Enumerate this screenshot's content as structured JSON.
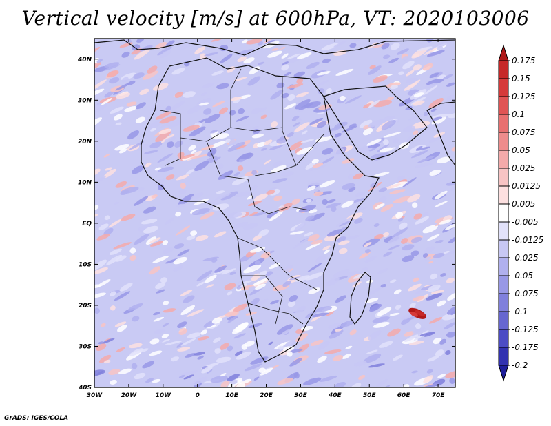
{
  "title": "Vertical velocity [m/s] at 600hPa, VT: 2020103006",
  "footer": "GrADS: IGES/COLA",
  "chart_data": {
    "type": "heatmap",
    "variable": "Vertical velocity",
    "units": "m/s",
    "level": "600hPa",
    "valid_time": "2020103006",
    "x_axis": {
      "range": [
        -30,
        75
      ],
      "ticks": [
        "30W",
        "20W",
        "10W",
        "0",
        "10E",
        "20E",
        "30E",
        "40E",
        "50E",
        "60E",
        "70E"
      ],
      "tick_values": [
        -30,
        -20,
        -10,
        0,
        10,
        20,
        30,
        40,
        50,
        60,
        70
      ]
    },
    "y_axis": {
      "range": [
        -40,
        45
      ],
      "ticks": [
        "40S",
        "30S",
        "20S",
        "10S",
        "EQ",
        "10N",
        "20N",
        "30N",
        "40N"
      ],
      "tick_values": [
        -40,
        -30,
        -20,
        -10,
        0,
        10,
        20,
        30,
        40
      ]
    },
    "colorbar": {
      "levels": [
        "0.175",
        "0.15",
        "0.125",
        "0.1",
        "0.075",
        "0.05",
        "0.025",
        "0.0125",
        "0.005",
        "-0.005",
        "-0.0125",
        "-0.025",
        "-0.05",
        "-0.075",
        "-0.1",
        "-0.125",
        "-0.175",
        "-0.2"
      ],
      "colors": [
        "#b01818",
        "#c62828",
        "#d63a3a",
        "#e05454",
        "#e87070",
        "#ee8c8c",
        "#f4aaaa",
        "#f8c4c4",
        "#fde0e0",
        "#ffffff",
        "#e2e2fa",
        "#c8c8f4",
        "#b0b0ee",
        "#9898e6",
        "#8080dc",
        "#6666d0",
        "#4c4cc4",
        "#3232b0",
        "#1e1e9a"
      ]
    },
    "features": {
      "strong_ascent_cyclone": {
        "lon": 64,
        "lat": -22,
        "sign": "positive"
      },
      "broad_descent_south_atlantic": {
        "lon_range": [
          -30,
          25
        ],
        "lat_range": [
          -40,
          -25
        ],
        "sign": "negative"
      },
      "broad_descent_south_indian": {
        "lon_range": [
          50,
          75
        ],
        "lat_range": [
          -35,
          -15
        ],
        "sign": "negative"
      }
    }
  }
}
